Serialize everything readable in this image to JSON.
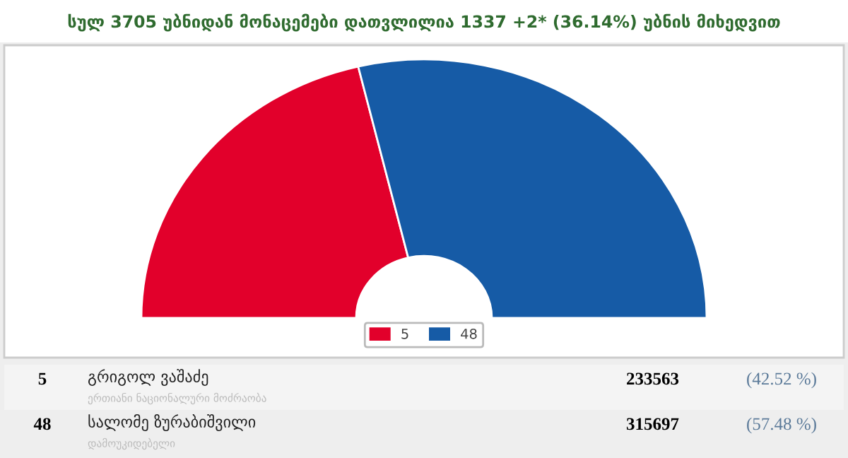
{
  "chart_data": {
    "type": "donut",
    "title": "სულ 3705 უბნიდან მონაცემები დათვლილია 1337 +2* (36.14%) უბნის მიხედვით",
    "categories": [
      "5",
      "48"
    ],
    "values": [
      42.52,
      57.48
    ],
    "colors": [
      "#e2002b",
      "#165ba6"
    ],
    "legend": "bottom",
    "annotations": [
      "გრიგოლ ვაშაძე",
      "ერთიანი ნაციონალური მოძრაობა",
      "233563",
      "(42.52 %)",
      "სალომე ზურაბიშვილი",
      "დამოუკიდებელი",
      "315697",
      "(57.48 %)"
    ]
  }
}
